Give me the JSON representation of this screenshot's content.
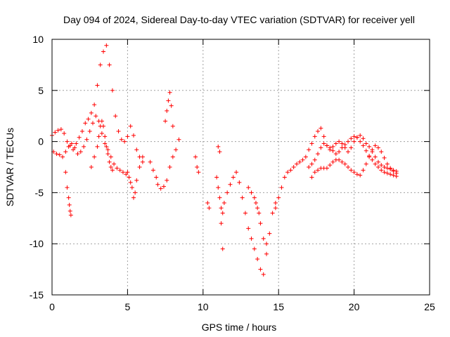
{
  "chart_data": {
    "type": "scatter",
    "title": "Day 094 of 2024, Sidereal Day-to-day VTEC variation (SDTVAR) for receiver yell",
    "xlabel": "GPS time / hours",
    "ylabel": "SDTVAR / TECUs",
    "xlim": [
      0,
      25
    ],
    "ylim": [
      -15,
      10
    ],
    "xticks": [
      "0",
      "5",
      "10",
      "15",
      "20",
      "25"
    ],
    "yticks": [
      "10",
      "5",
      "0",
      "-5",
      "-10",
      "-15"
    ],
    "grid": true,
    "marker": "+",
    "series": [
      {
        "name": "SDTVAR",
        "color": "#ff0000",
        "x": [
          0.0,
          0.2,
          0.4,
          0.6,
          0.8,
          1.0,
          1.2,
          1.4,
          1.6,
          1.8,
          2.0,
          2.2,
          2.4,
          2.6,
          2.8,
          3.0,
          3.2,
          3.4,
          3.6,
          3.8,
          4.0,
          4.2,
          4.4,
          4.6,
          4.8,
          5.0,
          5.2,
          5.4,
          5.6,
          5.8,
          6.0,
          0.1,
          0.3,
          0.5,
          0.7,
          0.9,
          1.1,
          1.3,
          1.5,
          1.7,
          1.9,
          2.1,
          2.3,
          2.5,
          2.7,
          2.9,
          3.1,
          3.3,
          3.5,
          3.7,
          3.9,
          4.1,
          4.3,
          4.5,
          4.7,
          4.9,
          5.1,
          5.3,
          0.9,
          1.0,
          1.1,
          1.15,
          1.2,
          1.25,
          2.6,
          2.8,
          3.0,
          3.1,
          3.2,
          3.3,
          3.4,
          3.5,
          3.6,
          3.7,
          3.8,
          3.9,
          4.0,
          5.0,
          5.2,
          5.4,
          5.5,
          5.6,
          5.8,
          6.0,
          6.5,
          6.7,
          6.9,
          7.0,
          7.2,
          7.4,
          7.6,
          7.8,
          8.0,
          8.2,
          8.4,
          7.5,
          7.6,
          7.7,
          7.8,
          7.9,
          8.0,
          9.5,
          9.6,
          9.7,
          10.3,
          10.4,
          10.9,
          11.0,
          11.1,
          11.2,
          11.3,
          11.4,
          11.6,
          11.8,
          12.0,
          12.2,
          11.0,
          11.1,
          11.2,
          11.3,
          12.4,
          12.6,
          12.8,
          13.0,
          13.2,
          13.4,
          13.6,
          13.8,
          14.0,
          14.2,
          14.4,
          14.6,
          14.8,
          13.0,
          13.2,
          13.4,
          13.5,
          13.6,
          13.7,
          13.8,
          14.0,
          14.2,
          14.8,
          15.0,
          15.2,
          15.4,
          15.6,
          15.8,
          16.0,
          16.2,
          16.4,
          16.6,
          16.8,
          17.0,
          17.2,
          17.4,
          17.6,
          17.8,
          18.0,
          18.2,
          18.4,
          18.6,
          18.8,
          19.0,
          19.2,
          19.4,
          19.6,
          19.8,
          20.0,
          20.2,
          20.4,
          20.6,
          20.8,
          21.0,
          21.2,
          21.4,
          21.6,
          21.8,
          22.0,
          22.2,
          22.4,
          22.6,
          22.8,
          17.0,
          17.2,
          17.4,
          17.6,
          17.8,
          18.0,
          18.2,
          18.4,
          18.6,
          18.8,
          19.0,
          19.2,
          19.4,
          19.6,
          19.8,
          20.0,
          20.2,
          20.4,
          20.6,
          20.8,
          21.0,
          21.2,
          21.4,
          21.6,
          21.8,
          22.0,
          22.2,
          22.4,
          22.6,
          22.8,
          17.2,
          17.4,
          17.6,
          17.8,
          18.0,
          18.2,
          18.4,
          18.6,
          18.8,
          19.0,
          19.2,
          19.4,
          19.6,
          19.8,
          20.0,
          20.2,
          20.4,
          20.6,
          20.8,
          21.0,
          21.2,
          21.4,
          21.6,
          21.8,
          22.0,
          22.2,
          22.4,
          22.6,
          22.8
        ],
        "y": [
          0.6,
          0.9,
          1.1,
          1.2,
          0.8,
          0.0,
          -0.4,
          -0.8,
          -0.2,
          0.4,
          1.0,
          1.8,
          2.2,
          2.8,
          3.6,
          5.5,
          7.5,
          8.8,
          9.4,
          7.5,
          5.0,
          2.5,
          1.0,
          0.2,
          0.0,
          0.5,
          1.5,
          0.6,
          -0.8,
          -1.5,
          -2.0,
          -1.0,
          -1.2,
          -1.3,
          -1.5,
          -1.0,
          -0.5,
          -0.2,
          -0.6,
          -1.2,
          -1.0,
          -0.5,
          0.2,
          1.0,
          1.8,
          2.5,
          2.0,
          0.8,
          -0.2,
          -0.8,
          -1.5,
          -2.2,
          -2.6,
          -2.8,
          -3.0,
          -3.2,
          -3.5,
          -4.5,
          -3.0,
          -4.5,
          -5.5,
          -6.2,
          -6.8,
          -7.2,
          -2.5,
          -1.5,
          -0.5,
          0.5,
          1.5,
          2.0,
          1.5,
          0.5,
          -0.5,
          -1.2,
          -2.0,
          -2.5,
          -2.8,
          -3.0,
          -4.0,
          -5.5,
          -5.0,
          -3.8,
          -2.5,
          -1.5,
          -2.0,
          -2.8,
          -3.5,
          -4.2,
          -4.6,
          -4.4,
          -3.8,
          -2.5,
          -1.5,
          -0.8,
          0.2,
          2.0,
          3.0,
          4.0,
          4.8,
          3.5,
          1.5,
          -1.5,
          -2.5,
          -3.0,
          -6.0,
          -6.5,
          -3.5,
          -4.5,
          -5.5,
          -6.5,
          -7.0,
          -6.0,
          -5.0,
          -4.2,
          -3.5,
          -3.0,
          -0.5,
          -1.0,
          -8.0,
          -10.5,
          -4.0,
          -5.5,
          -7.0,
          -8.5,
          -9.5,
          -10.5,
          -11.5,
          -12.5,
          -13.0,
          -11.0,
          -9.0,
          -7.0,
          -6.0,
          -4.5,
          -5.0,
          -5.5,
          -6.0,
          -6.5,
          -7.0,
          -8.0,
          -9.5,
          -10.0,
          -6.5,
          -5.5,
          -4.5,
          -3.5,
          -3.0,
          -2.8,
          -2.5,
          -2.2,
          -2.0,
          -1.8,
          -1.5,
          -0.8,
          -0.2,
          0.5,
          1.0,
          1.3,
          0.5,
          -0.4,
          -0.8,
          -0.5,
          -0.2,
          0.0,
          -0.2,
          -0.6,
          -1.0,
          -0.6,
          0.0,
          0.4,
          0.6,
          0.3,
          -0.2,
          -0.5,
          -1.0,
          -1.5,
          -2.0,
          -2.3,
          -2.5,
          -2.6,
          -2.7,
          -2.8,
          -2.9,
          -2.5,
          -2.2,
          -1.8,
          -1.2,
          -0.6,
          -0.2,
          -0.4,
          -0.6,
          -0.9,
          -1.2,
          -1.0,
          -0.6,
          -0.3,
          0.0,
          0.3,
          0.5,
          0.4,
          0.0,
          -0.4,
          -0.9,
          -1.4,
          -1.8,
          -2.2,
          -2.5,
          -2.8,
          -3.0,
          -3.1,
          -3.2,
          -3.3,
          -3.4,
          -3.5,
          -3.0,
          -2.8,
          -2.6,
          -2.6,
          -2.6,
          -2.3,
          -2.0,
          -1.8,
          -1.8,
          -2.0,
          -2.2,
          -2.5,
          -2.8,
          -3.0,
          -3.2,
          -3.3,
          -2.8,
          -2.2,
          -1.5,
          -0.8,
          -0.4,
          -0.6,
          -1.0,
          -1.6,
          -2.2,
          -2.6,
          -2.9,
          -3.1
        ]
      }
    ]
  }
}
